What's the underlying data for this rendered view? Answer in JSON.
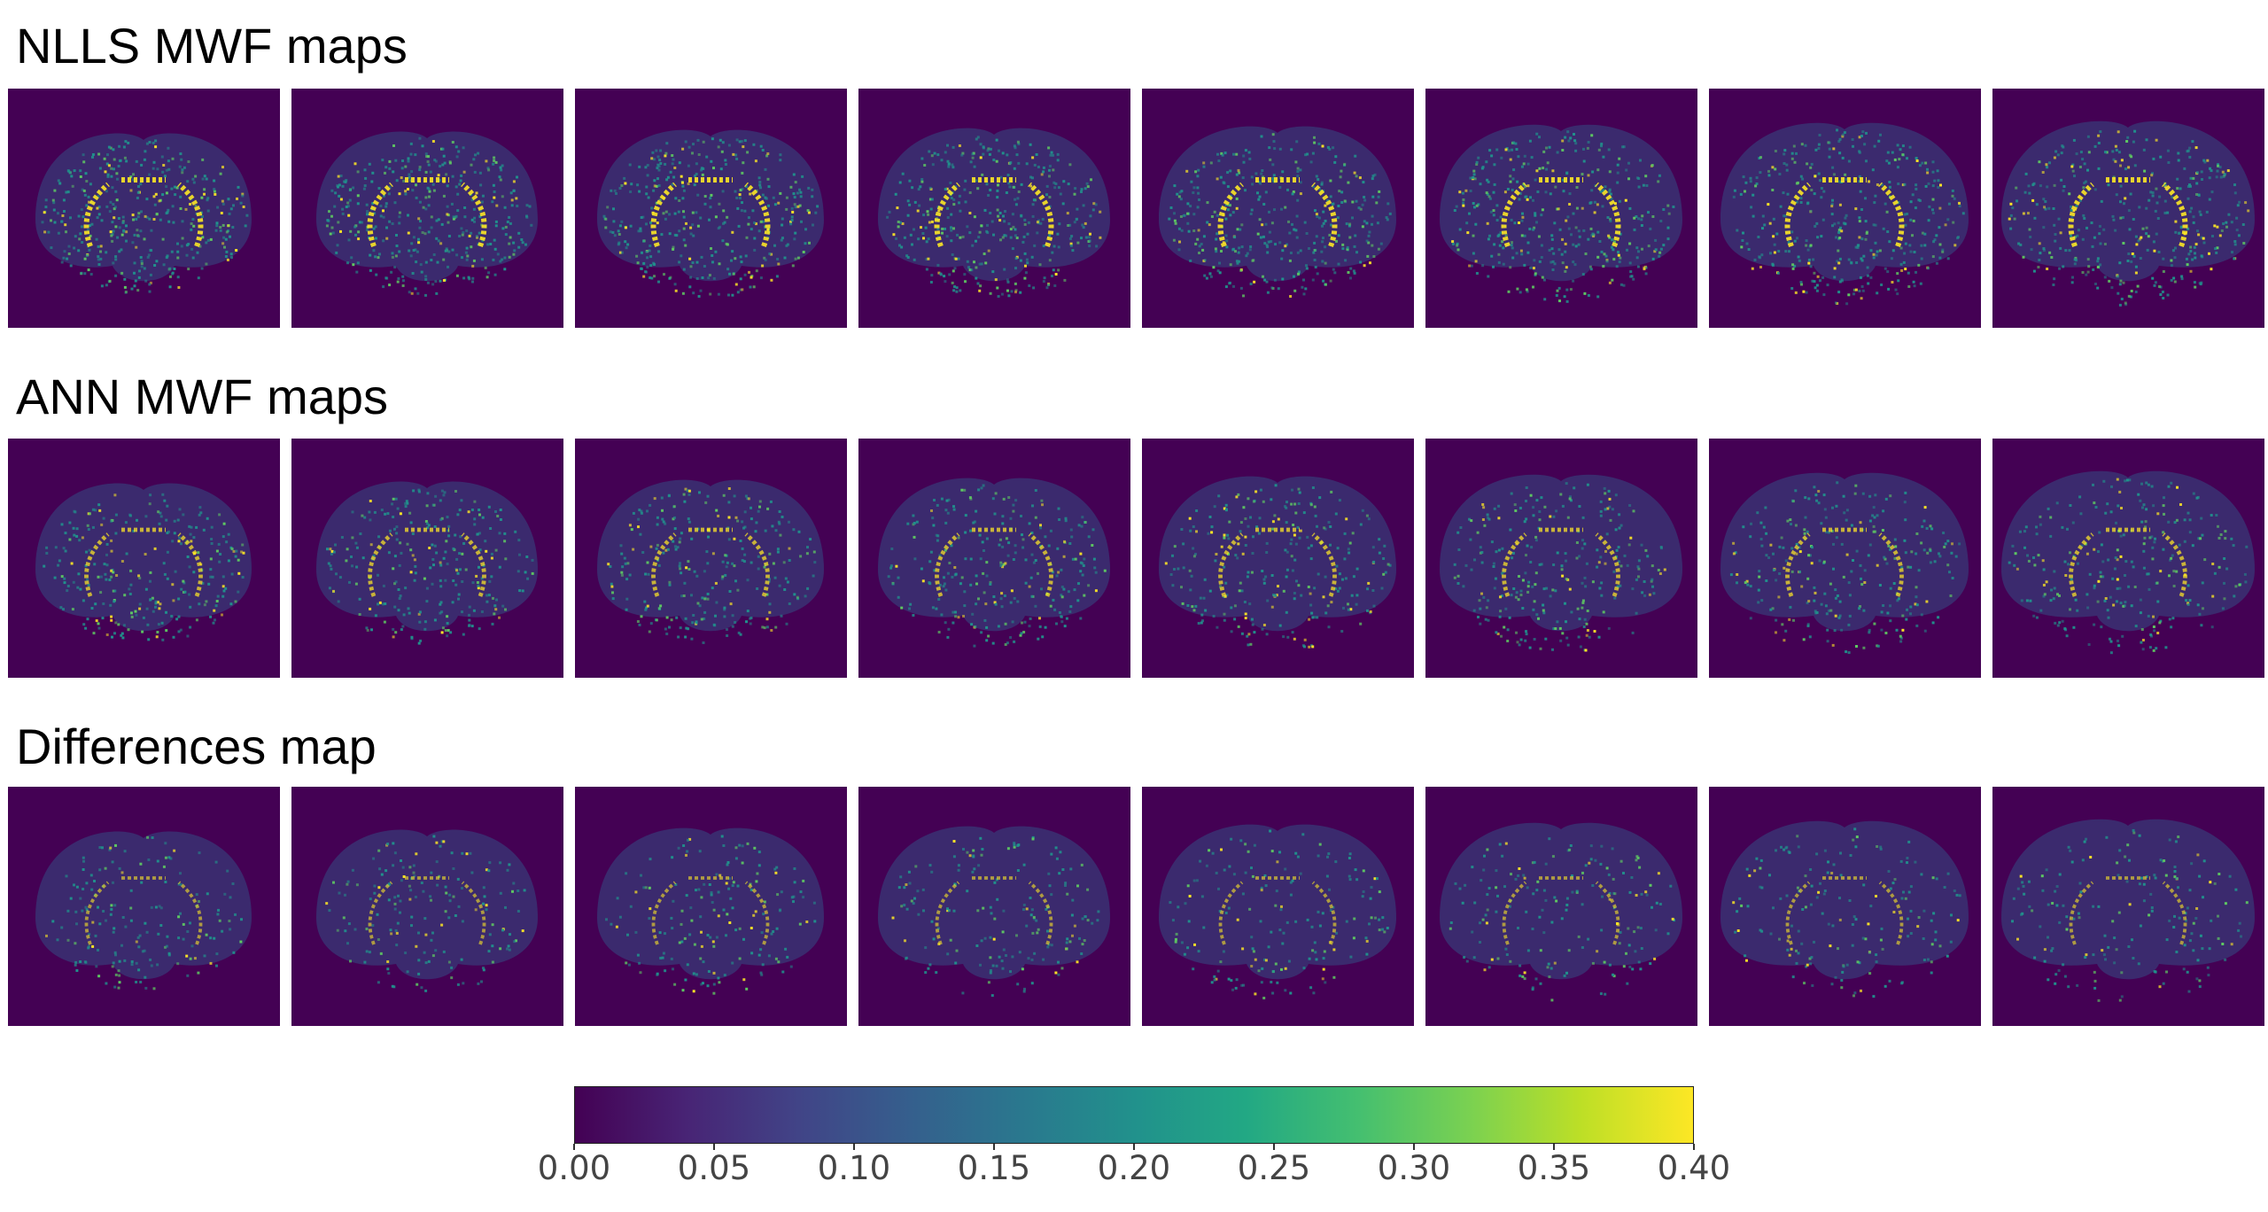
{
  "rows": [
    {
      "title": "NLLS MWF maps",
      "intensity": 1.0
    },
    {
      "title": "ANN MWF maps",
      "intensity": 0.7
    },
    {
      "title": "Differences map",
      "intensity": 0.45
    }
  ],
  "slices_per_row": 8,
  "colormap": "viridis",
  "colorbar": {
    "min": 0.0,
    "max": 0.4,
    "ticks": [
      "0.00",
      "0.05",
      "0.10",
      "0.15",
      "0.20",
      "0.25",
      "0.30",
      "0.35",
      "0.40"
    ]
  },
  "colors": {
    "background_panel": "#440154",
    "brain_tissue": "#3b2a6e",
    "hot": "#fde725",
    "warm": "#5ec962",
    "mid": "#21918c"
  }
}
